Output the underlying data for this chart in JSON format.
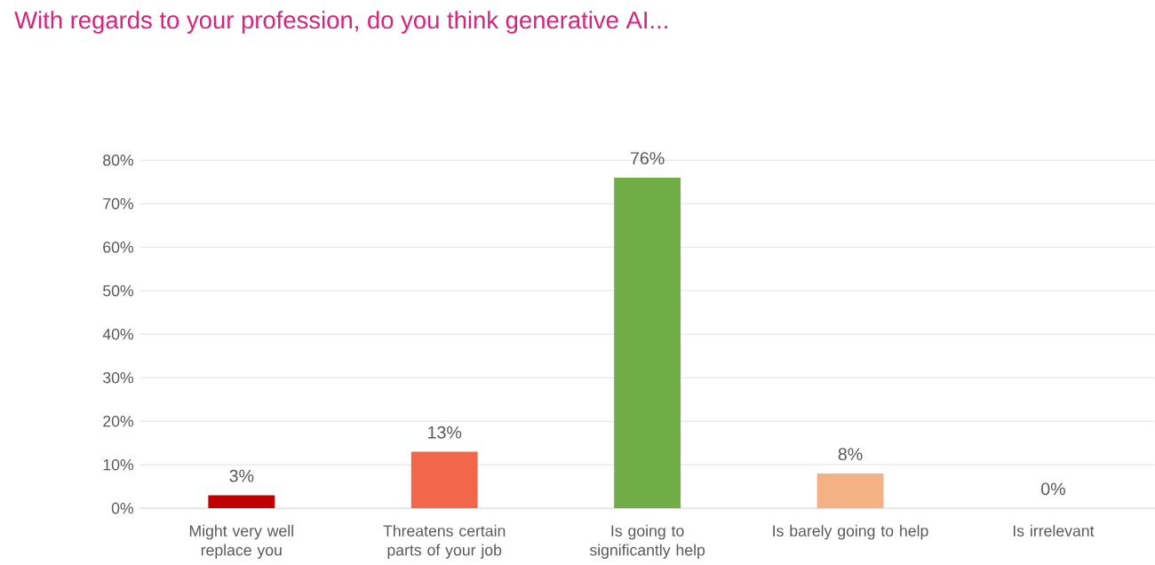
{
  "chart_data": {
    "type": "bar",
    "title": "With regards to your profession, do you think generative AI...",
    "categories": [
      "Might very well replace you",
      "Threatens certain parts of your job",
      "Is going to significantly help",
      "Is barely going to help",
      "Is irrelevant"
    ],
    "values": [
      3,
      13,
      76,
      8,
      0
    ],
    "colors": [
      "#c00000",
      "#f26649",
      "#70ad47",
      "#f4b183",
      "#a5a5a5"
    ],
    "value_labels": [
      "3%",
      "13%",
      "76%",
      "8%",
      "0%"
    ],
    "ylim": [
      0,
      80
    ],
    "yticks": [
      {
        "value": 0,
        "label": "0%"
      },
      {
        "value": 10,
        "label": "10%"
      },
      {
        "value": 20,
        "label": "20%"
      },
      {
        "value": 30,
        "label": "30%"
      },
      {
        "value": 40,
        "label": "40%"
      },
      {
        "value": 50,
        "label": "50%"
      },
      {
        "value": 60,
        "label": "60%"
      },
      {
        "value": 70,
        "label": "70%"
      },
      {
        "value": 80,
        "label": "80%"
      }
    ],
    "grid": "y"
  }
}
